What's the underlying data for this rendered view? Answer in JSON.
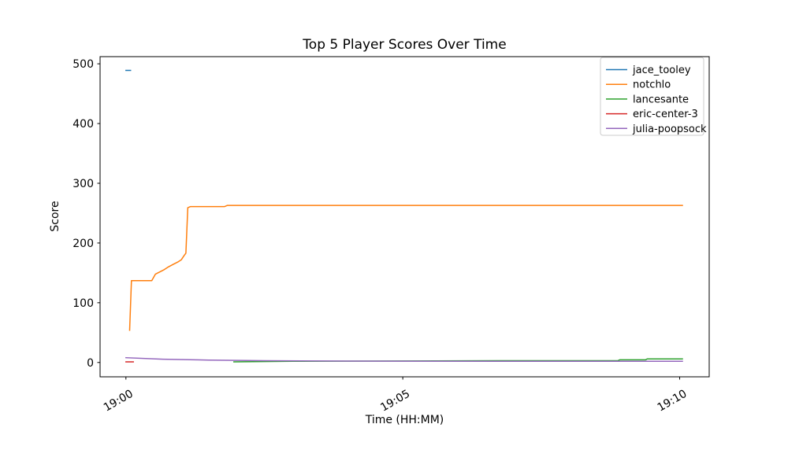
{
  "figure": {
    "background": "#ffffff",
    "spine_color": "#000000",
    "tick_color": "#000000",
    "legend_border_color": "#cccccc",
    "legend_background": "#ffffff"
  },
  "chart_data": {
    "type": "line",
    "title": "Top 5 Player Scores Over Time",
    "xlabel": "Time (HH:MM)",
    "ylabel": "Score",
    "x_unit": "seconds after 19:00",
    "xlim_seconds": [
      -28,
      632
    ],
    "ylim": [
      -24,
      512
    ],
    "grid": false,
    "legend_position": "upper-right",
    "xticks": [
      {
        "t": 0,
        "label": "19:00"
      },
      {
        "t": 300,
        "label": "19:05"
      },
      {
        "t": 600,
        "label": "19:10"
      }
    ],
    "yticks": [
      0,
      100,
      200,
      300,
      400,
      500
    ],
    "series": [
      {
        "name": "jace_tooley",
        "color": "#1f77b4",
        "points": [
          [
            0,
            489
          ],
          [
            5,
            489
          ]
        ]
      },
      {
        "name": "notchlo",
        "color": "#ff7f0e",
        "points": [
          [
            4,
            54
          ],
          [
            6,
            137
          ],
          [
            28,
            137
          ],
          [
            32,
            148
          ],
          [
            36,
            151
          ],
          [
            41,
            155
          ],
          [
            46,
            160
          ],
          [
            51,
            164
          ],
          [
            56,
            168
          ],
          [
            60,
            172
          ],
          [
            63,
            179
          ],
          [
            65,
            183
          ],
          [
            67,
            259
          ],
          [
            70,
            261
          ],
          [
            107,
            261
          ],
          [
            110,
            263
          ],
          [
            603,
            263
          ]
        ]
      },
      {
        "name": "lancesante",
        "color": "#2ca02c",
        "points": [
          [
            117,
            1
          ],
          [
            180,
            2
          ],
          [
            300,
            2.5
          ],
          [
            420,
            3
          ],
          [
            533,
            3
          ],
          [
            535,
            4.5
          ],
          [
            563,
            4.5
          ],
          [
            565,
            6
          ],
          [
            603,
            6
          ]
        ]
      },
      {
        "name": "eric-center-3",
        "color": "#d62728",
        "points": [
          [
            0,
            1
          ],
          [
            8,
            1
          ]
        ]
      },
      {
        "name": "julia-poopsock",
        "color": "#9467bd",
        "points": [
          [
            0,
            8
          ],
          [
            40,
            5.5
          ],
          [
            90,
            4
          ],
          [
            150,
            3
          ],
          [
            240,
            2.4
          ],
          [
            420,
            2
          ],
          [
            603,
            2
          ]
        ]
      }
    ]
  }
}
